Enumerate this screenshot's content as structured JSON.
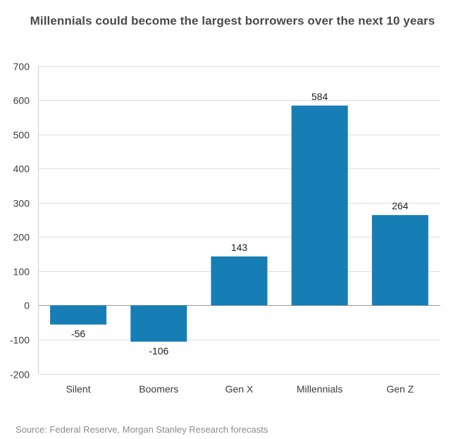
{
  "chart_data": {
    "type": "bar",
    "title": "Millennials could become the largest borrowers over the next 10 years",
    "xlabel": "",
    "ylabel": "",
    "categories": [
      "Silent",
      "Boomers",
      "Gen X",
      "Millennials",
      "Gen Z"
    ],
    "values": [
      -56,
      -106,
      143,
      584,
      264
    ],
    "ylim": [
      -200,
      700
    ],
    "yticks": [
      -200,
      -100,
      0,
      100,
      200,
      300,
      400,
      500,
      600,
      700
    ],
    "grid": true,
    "bar_color": "#167db5",
    "source": "Source: Federal Reserve, Morgan Stanley Research forecasts"
  }
}
